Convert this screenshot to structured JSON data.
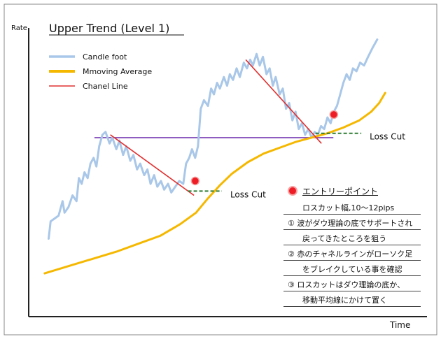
{
  "chart_data": {
    "type": "line",
    "title": "Upper Trend (Level 1)",
    "xlabel": "Time",
    "ylabel": "Rate",
    "grid": false,
    "legend_position": "top-left",
    "xlim": [
      0,
      100
    ],
    "ylim": [
      0,
      100
    ],
    "legend": [
      {
        "label": "Candle foot",
        "color": "#a9c7e8"
      },
      {
        "label": "Mmoving Average",
        "color": "#f5b800"
      },
      {
        "label": "Chanel Line",
        "color": "#e03030"
      }
    ],
    "series": [
      {
        "name": "Candle foot",
        "color": "#a9c7e8",
        "points": [
          [
            5,
            27
          ],
          [
            5.5,
            33
          ],
          [
            6.5,
            34
          ],
          [
            7.5,
            35
          ],
          [
            8.5,
            40
          ],
          [
            9,
            36
          ],
          [
            10,
            38
          ],
          [
            11,
            42
          ],
          [
            12,
            40
          ],
          [
            12.6,
            48
          ],
          [
            13.3,
            46
          ],
          [
            14,
            50
          ],
          [
            14.8,
            48
          ],
          [
            15.5,
            53
          ],
          [
            16.3,
            55
          ],
          [
            17,
            52
          ],
          [
            17.7,
            59
          ],
          [
            18.5,
            63
          ],
          [
            19.3,
            64
          ],
          [
            20.3,
            60
          ],
          [
            21,
            62
          ],
          [
            22,
            58
          ],
          [
            22.8,
            61
          ],
          [
            23.7,
            56
          ],
          [
            24.5,
            59
          ],
          [
            25.5,
            54
          ],
          [
            26.3,
            56
          ],
          [
            27.2,
            51
          ],
          [
            28,
            53
          ],
          [
            29,
            49
          ],
          [
            29.8,
            51
          ],
          [
            30.6,
            46
          ],
          [
            31.5,
            49
          ],
          [
            32.3,
            45
          ],
          [
            33.2,
            47
          ],
          [
            34,
            44
          ],
          [
            35,
            46
          ],
          [
            35.8,
            43
          ],
          [
            36.8,
            45
          ],
          [
            37.8,
            47
          ],
          [
            38.8,
            46
          ],
          [
            39.5,
            53
          ],
          [
            40.3,
            55
          ],
          [
            41,
            58
          ],
          [
            41.8,
            55
          ],
          [
            42.5,
            59
          ],
          [
            43.2,
            72
          ],
          [
            44,
            75
          ],
          [
            45,
            73
          ],
          [
            45.8,
            79
          ],
          [
            46.5,
            77
          ],
          [
            47.3,
            81
          ],
          [
            48,
            79
          ],
          [
            49,
            83
          ],
          [
            49.8,
            80
          ],
          [
            50.5,
            84
          ],
          [
            51.3,
            82
          ],
          [
            52.2,
            86
          ],
          [
            53,
            83
          ],
          [
            54,
            88
          ],
          [
            54.8,
            86
          ],
          [
            55.6,
            89
          ],
          [
            56.3,
            87
          ],
          [
            57.2,
            91
          ],
          [
            58,
            87
          ],
          [
            58.8,
            90
          ],
          [
            59.7,
            84
          ],
          [
            60.5,
            86
          ],
          [
            61.3,
            80
          ],
          [
            62,
            83
          ],
          [
            63,
            77
          ],
          [
            63.8,
            79
          ],
          [
            64.6,
            72
          ],
          [
            65.4,
            74
          ],
          [
            66.2,
            68
          ],
          [
            67,
            71
          ],
          [
            67.8,
            65
          ],
          [
            68.6,
            67
          ],
          [
            69.4,
            63
          ],
          [
            70.2,
            65
          ],
          [
            71,
            62
          ],
          [
            71.8,
            64
          ],
          [
            72.6,
            63
          ],
          [
            73.4,
            66
          ],
          [
            74.2,
            65
          ],
          [
            75,
            69
          ],
          [
            75.8,
            67
          ],
          [
            76.6,
            71
          ],
          [
            77.4,
            73
          ],
          [
            78.2,
            77
          ],
          [
            79,
            81
          ],
          [
            79.8,
            84
          ],
          [
            80.6,
            82
          ],
          [
            81.4,
            86
          ],
          [
            82.3,
            85
          ],
          [
            83.2,
            88
          ],
          [
            84.2,
            87
          ],
          [
            85.2,
            90
          ],
          [
            86.3,
            93
          ],
          [
            87.5,
            96
          ]
        ]
      },
      {
        "name": "Mmoving Average",
        "color": "#f5b800",
        "points": [
          [
            4,
            15
          ],
          [
            10,
            17.5
          ],
          [
            16,
            20
          ],
          [
            22,
            22.5
          ],
          [
            28,
            25.5
          ],
          [
            33,
            28
          ],
          [
            38,
            32
          ],
          [
            42,
            36
          ],
          [
            45,
            41
          ],
          [
            48,
            45.5
          ],
          [
            51,
            49.5
          ],
          [
            55,
            53.5
          ],
          [
            59,
            56.5
          ],
          [
            63,
            58.5
          ],
          [
            67,
            60.5
          ],
          [
            71,
            62
          ],
          [
            75,
            63.5
          ],
          [
            79,
            65.5
          ],
          [
            83,
            68
          ],
          [
            86,
            71
          ],
          [
            88,
            74
          ],
          [
            89.5,
            77.5
          ]
        ]
      }
    ],
    "channel_lines": [
      {
        "from": [
          20.5,
          63
        ],
        "to": [
          41.5,
          42
        ]
      },
      {
        "from": [
          54.5,
          89
        ],
        "to": [
          73.5,
          60
        ]
      }
    ],
    "support_line": {
      "y": 62,
      "x_from": 16.5,
      "x_to": 76.5,
      "color": "#7b3fb5"
    },
    "loss_cut_lines": [
      {
        "x_from": 40,
        "x_to": 48.5,
        "y": 43.5,
        "label": "Loss Cut"
      },
      {
        "x_from": 72,
        "x_to": 83.5,
        "y": 63.5,
        "label": "Loss Cut"
      }
    ],
    "entry_points": [
      {
        "x": 41.8,
        "y": 47
      },
      {
        "x": 76.6,
        "y": 70
      }
    ],
    "annotations": {
      "title": "エントリーポイント",
      "lines": [
        "ロスカット幅,10～12pips",
        "① 波がダウ理論の底でサポートされ",
        "戻ってきたところを狙う",
        "② 赤のチャネルラインがローソク足",
        "をブレイクしている事を確認",
        "③ ロスカットはダウ理論の底か、",
        "移動平均線にかけて置く"
      ]
    }
  }
}
